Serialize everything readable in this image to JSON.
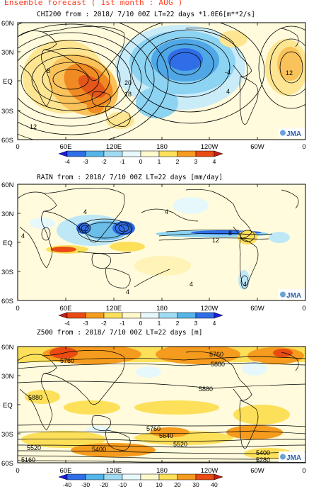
{
  "page_title": "Ensemble forecast ( 1st month : AUG )",
  "badge": "JMA",
  "lon_labels": [
    "0",
    "60E",
    "120E",
    "180",
    "120W",
    "60W",
    "0"
  ],
  "lat_labels": [
    "60N",
    "30N",
    "EQ",
    "30S",
    "60S"
  ],
  "panels": [
    {
      "title": "CHI200  from : 2018/ 7/10 00Z LT=22 days  *1.0E6[m**2/s]",
      "colorbar_labels": [
        "-4",
        "-3",
        "-2",
        "-1",
        "0",
        "1",
        "2",
        "3",
        "4"
      ],
      "colorbar_colors": [
        "#1a1ae6",
        "#2f6ee6",
        "#55b4e8",
        "#9fdcf4",
        "#e6f8fb",
        "#fff9cc",
        "#fde05a",
        "#f59b1e",
        "#e94b12",
        "#c81e14"
      ],
      "contour_labels": [
        "8",
        "12",
        "20",
        "18",
        "-4",
        "4",
        "12"
      ]
    },
    {
      "title": "RAIN   from : 2018/ 7/10 00Z LT=22 days  [mm/day]",
      "colorbar_labels": [
        "-4",
        "-3",
        "-2",
        "-1",
        "0",
        "1",
        "2",
        "3",
        "4"
      ],
      "colorbar_colors": [
        "#c81e14",
        "#e94b12",
        "#f59b1e",
        "#fde05a",
        "#fff9cc",
        "#e6f8fb",
        "#9fdcf4",
        "#55b4e8",
        "#2f6ee6",
        "#1a1ae6"
      ],
      "contour_labels": [
        "4",
        "4",
        "4",
        "12",
        "8",
        "4",
        "4",
        "4"
      ]
    },
    {
      "title": "Z500   from : 2018/ 7/10 00Z LT=22 days  [m]",
      "colorbar_labels": [
        "-40",
        "-30",
        "-20",
        "-10",
        "0",
        "10",
        "20",
        "30",
        "40"
      ],
      "colorbar_colors": [
        "#1a1ae6",
        "#2f6ee6",
        "#55b4e8",
        "#9fdcf4",
        "#e6f8fb",
        "#fff9cc",
        "#fde05a",
        "#f59b1e",
        "#e94b12",
        "#c81e14"
      ],
      "contour_labels": [
        "5760",
        "5760",
        "5880",
        "5880",
        "5880",
        "5760",
        "5640",
        "5520",
        "5520",
        "5400",
        "5400",
        "5280",
        "5160"
      ]
    }
  ]
}
